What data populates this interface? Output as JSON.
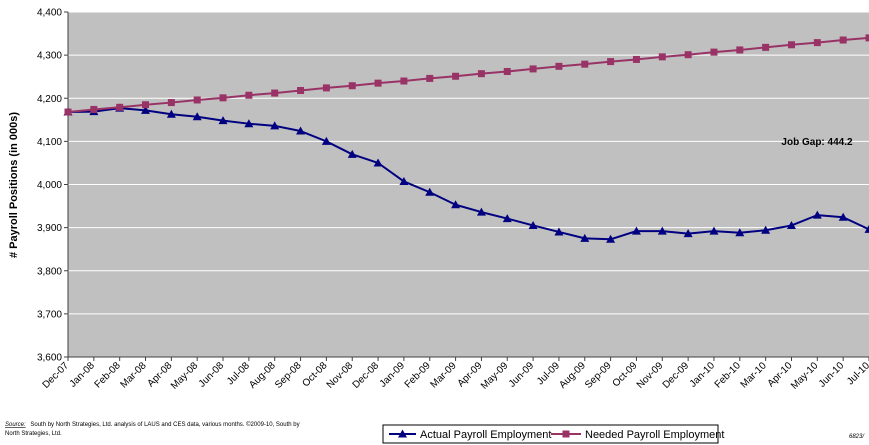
{
  "chart_data": {
    "type": "line",
    "categories": [
      "Dec-07",
      "Jan-08",
      "Feb-08",
      "Mar-08",
      "Apr-08",
      "May-08",
      "Jun-08",
      "Jul-08",
      "Aug-08",
      "Sep-08",
      "Oct-08",
      "Nov-08",
      "Dec-08",
      "Jan-09",
      "Feb-09",
      "Mar-09",
      "Apr-09",
      "May-09",
      "Jun-09",
      "Jul-09",
      "Aug-09",
      "Sep-09",
      "Oct-09",
      "Nov-09",
      "Dec-09",
      "Jan-10",
      "Feb-10",
      "Mar-10",
      "Apr-10",
      "May-10",
      "Jun-10",
      "Jul-10"
    ],
    "series": [
      {
        "name": "Actual Payroll Employment",
        "color": "#000080",
        "marker": "triangle",
        "values": [
          4168,
          4169,
          4177,
          4172,
          4163,
          4157,
          4148,
          4141,
          4136,
          4124,
          4100,
          4070,
          4050,
          4007,
          3982,
          3953,
          3936,
          3921,
          3905,
          3890,
          3875,
          3873,
          3892,
          3892,
          3886,
          3892,
          3888,
          3894,
          3905,
          3929,
          3924,
          3896
        ]
      },
      {
        "name": "Needed Payroll Employment",
        "color": "#993366",
        "marker": "square",
        "values": [
          4168,
          4174,
          4179,
          4185,
          4190,
          4196,
          4201,
          4207,
          4212,
          4218,
          4224,
          4229,
          4235,
          4240,
          4246,
          4251,
          4257,
          4262,
          4268,
          4274,
          4279,
          4285,
          4290,
          4296,
          4301,
          4307,
          4312,
          4318,
          4324,
          4329,
          4335,
          4340
        ]
      }
    ],
    "ylabel": "# Payroll Positions (in 000s)",
    "ylim": [
      3600,
      4400
    ],
    "yticks": [
      3600,
      3700,
      3800,
      3900,
      4000,
      4100,
      4200,
      4300,
      4400
    ],
    "annotation": "Job Gap: 444.2",
    "grid": true,
    "legend": "bottom",
    "plot_background": "#C0C0C0",
    "gridline_color": "#FFFFFF"
  },
  "source": {
    "label": "Source:",
    "line1": "South by North Strategies, Ltd. analysis of LAUS and CES data, various months. ©2009-10, South by",
    "line2": "North Strategies, Ltd."
  },
  "date_stamp": "6823/"
}
